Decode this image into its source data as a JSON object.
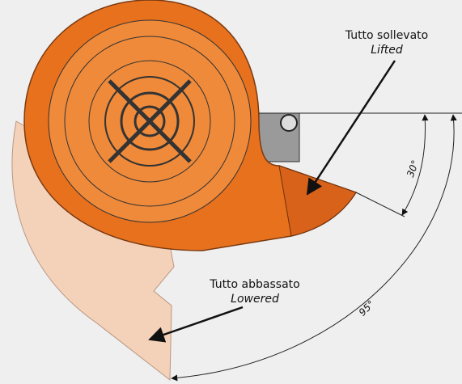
{
  "labels": {
    "lifted": {
      "it": "Tutto sollevato",
      "en": "Lifted"
    },
    "lowered": {
      "it": "Tutto abbassato",
      "en": "Lowered"
    }
  },
  "angles": {
    "lift": "30°",
    "total": "95°"
  }
}
